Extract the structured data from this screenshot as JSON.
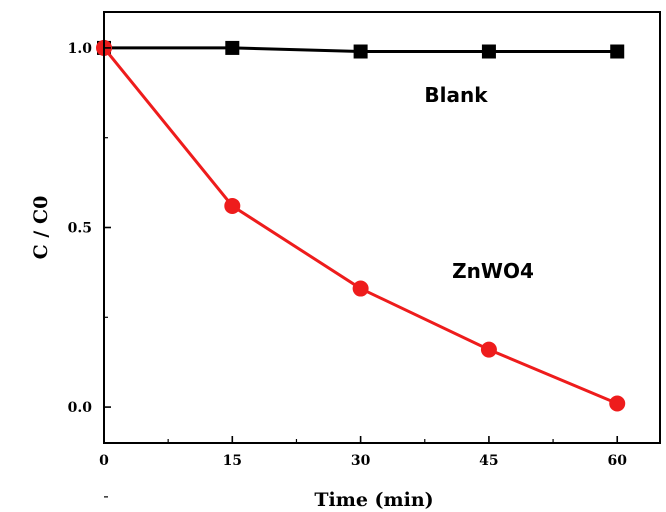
{
  "chart_data": {
    "type": "line",
    "xlabel": "Time (min)",
    "ylabel": "C / C0",
    "xlim": [
      0,
      65
    ],
    "ylim": [
      -0.1,
      1.1
    ],
    "x_ticks": [
      0,
      15,
      30,
      45,
      60
    ],
    "x_tick_labels": [
      "0",
      "15",
      "30",
      "45",
      "60"
    ],
    "y_ticks": [
      0.0,
      0.5,
      1.0
    ],
    "y_tick_labels": [
      "0.0",
      "0.5",
      "1.0"
    ],
    "grid": false,
    "series": [
      {
        "name": "Blank",
        "color": "#000000",
        "marker": "square",
        "x": [
          0,
          15,
          30,
          45,
          60
        ],
        "y": [
          1.0,
          1.0,
          0.99,
          0.99,
          0.99
        ]
      },
      {
        "name": "ZnWO4",
        "color": "#ee1c1c",
        "marker": "circle",
        "x": [
          0,
          15,
          30,
          45,
          60
        ],
        "y": [
          1.0,
          0.56,
          0.33,
          0.16,
          0.01
        ]
      }
    ]
  }
}
